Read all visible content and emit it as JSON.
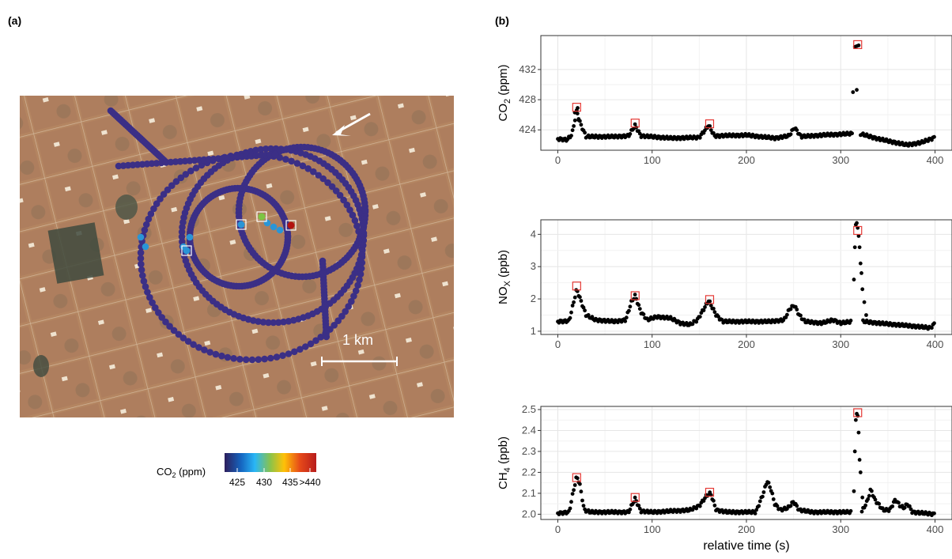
{
  "panel_labels": {
    "a": "(a)",
    "b": "(b)"
  },
  "map": {
    "scale_bar_label": "1 km",
    "colorbar": {
      "label_main": "CO",
      "label_sub": "2",
      "label_unit": " (ppm)",
      "tick_labels": [
        "425",
        "430",
        "435",
        ">440"
      ],
      "colors": [
        "#2d1e5c",
        "#1565c0",
        "#29b6f6",
        "#8bc34a",
        "#ffc107",
        "#e64a19",
        "#b71c1c"
      ]
    },
    "track_color": "#3b2f86",
    "highlight_colors": [
      "#2a95d6",
      "#2a95d6",
      "#7cc543",
      "#b3120f"
    ]
  },
  "chart_data": [
    {
      "type": "scatter",
      "ylabel_main": "CO",
      "ylabel_sub": "2",
      "ylabel_unit": " (ppm)",
      "xlim": [
        -18,
        418
      ],
      "ylim": [
        421.3,
        436.5
      ],
      "xticks": [
        0,
        100,
        200,
        300,
        400
      ],
      "yticks": [
        424,
        428,
        432
      ],
      "grid": true,
      "baseline": [
        [
          0,
          422.8
        ],
        [
          10,
          422.7
        ],
        [
          15,
          423.4
        ],
        [
          20,
          426.5
        ],
        [
          24,
          424.8
        ],
        [
          30,
          423.1
        ],
        [
          60,
          423.1
        ],
        [
          75,
          423.2
        ],
        [
          82,
          424.6
        ],
        [
          88,
          423.2
        ],
        [
          120,
          422.9
        ],
        [
          150,
          423.0
        ],
        [
          160,
          424.6
        ],
        [
          166,
          423.2
        ],
        [
          200,
          423.3
        ],
        [
          230,
          422.9
        ],
        [
          245,
          423.2
        ],
        [
          251,
          424.3
        ],
        [
          258,
          423.1
        ],
        [
          280,
          423.3
        ],
        [
          312,
          423.5
        ],
        [
          313,
          423.6
        ],
        [
          320,
          423.5
        ],
        [
          340,
          422.8
        ],
        [
          370,
          422.0
        ],
        [
          385,
          422.3
        ],
        [
          400,
          423.0
        ]
      ],
      "gaps": [
        [
          313,
          320
        ]
      ],
      "extra_points": [
        [
          18,
          426.3
        ],
        [
          20,
          426.6
        ],
        [
          21,
          426.9
        ],
        [
          22,
          425.3
        ],
        [
          313,
          429.0
        ],
        [
          317,
          429.3
        ],
        [
          315,
          435.0
        ],
        [
          317,
          435.1
        ],
        [
          319,
          435.2
        ]
      ],
      "markers": [
        [
          20,
          427.0
        ],
        [
          82,
          424.9
        ],
        [
          161,
          424.8
        ],
        [
          318,
          435.3
        ]
      ]
    },
    {
      "type": "scatter",
      "ylabel_main": "NO",
      "ylabel_sub": "X",
      "ylabel_unit": " (ppb)",
      "xlim": [
        -18,
        418
      ],
      "ylim": [
        0.9,
        4.45
      ],
      "xticks": [
        0,
        100,
        200,
        300,
        400
      ],
      "yticks": [
        1,
        2,
        3,
        4
      ],
      "grid": true,
      "baseline": [
        [
          0,
          1.3
        ],
        [
          12,
          1.32
        ],
        [
          16,
          1.8
        ],
        [
          20,
          2.3
        ],
        [
          25,
          1.9
        ],
        [
          30,
          1.5
        ],
        [
          40,
          1.35
        ],
        [
          60,
          1.3
        ],
        [
          72,
          1.35
        ],
        [
          78,
          1.9
        ],
        [
          82,
          2.1
        ],
        [
          88,
          1.6
        ],
        [
          95,
          1.35
        ],
        [
          105,
          1.45
        ],
        [
          120,
          1.4
        ],
        [
          130,
          1.25
        ],
        [
          140,
          1.2
        ],
        [
          148,
          1.35
        ],
        [
          155,
          1.7
        ],
        [
          160,
          1.95
        ],
        [
          168,
          1.5
        ],
        [
          175,
          1.3
        ],
        [
          200,
          1.3
        ],
        [
          225,
          1.3
        ],
        [
          240,
          1.35
        ],
        [
          246,
          1.7
        ],
        [
          251,
          1.8
        ],
        [
          256,
          1.5
        ],
        [
          262,
          1.3
        ],
        [
          280,
          1.25
        ],
        [
          292,
          1.35
        ],
        [
          300,
          1.25
        ],
        [
          312,
          1.3
        ],
        [
          325,
          1.3
        ],
        [
          340,
          1.25
        ],
        [
          360,
          1.2
        ],
        [
          380,
          1.15
        ],
        [
          395,
          1.1
        ],
        [
          400,
          1.25
        ]
      ],
      "gaps": [
        [
          312,
          323
        ]
      ],
      "extra_points": [
        [
          314,
          2.6
        ],
        [
          315,
          3.6
        ],
        [
          316,
          4.3
        ],
        [
          317,
          4.35
        ],
        [
          318,
          4.2
        ],
        [
          319,
          3.95
        ],
        [
          320,
          3.6
        ],
        [
          321,
          3.1
        ],
        [
          322,
          2.8
        ],
        [
          323,
          2.3
        ],
        [
          325,
          1.9
        ],
        [
          327,
          1.5
        ]
      ],
      "markers": [
        [
          20,
          2.4
        ],
        [
          82,
          2.1
        ],
        [
          161,
          1.98
        ],
        [
          318,
          4.12
        ]
      ]
    },
    {
      "type": "scatter",
      "ylabel_main": "CH",
      "ylabel_sub": "4",
      "ylabel_unit": " (ppb)",
      "xlim": [
        -18,
        418
      ],
      "ylim": [
        1.975,
        2.515
      ],
      "xticks": [
        0,
        100,
        200,
        300,
        400
      ],
      "yticks": [
        2.0,
        2.1,
        2.2,
        2.3,
        2.4,
        2.5
      ],
      "xlabel": "relative time (s)",
      "grid": true,
      "baseline": [
        [
          0,
          2.005
        ],
        [
          12,
          2.01
        ],
        [
          16,
          2.1
        ],
        [
          20,
          2.18
        ],
        [
          23,
          2.15
        ],
        [
          28,
          2.02
        ],
        [
          35,
          2.01
        ],
        [
          75,
          2.01
        ],
        [
          82,
          2.075
        ],
        [
          88,
          2.015
        ],
        [
          100,
          2.01
        ],
        [
          140,
          2.02
        ],
        [
          150,
          2.04
        ],
        [
          158,
          2.09
        ],
        [
          162,
          2.1
        ],
        [
          168,
          2.02
        ],
        [
          180,
          2.01
        ],
        [
          210,
          2.01
        ],
        [
          218,
          2.1
        ],
        [
          222,
          2.16
        ],
        [
          226,
          2.12
        ],
        [
          230,
          2.05
        ],
        [
          236,
          2.02
        ],
        [
          244,
          2.03
        ],
        [
          250,
          2.06
        ],
        [
          256,
          2.02
        ],
        [
          270,
          2.01
        ],
        [
          312,
          2.01
        ],
        [
          322,
          2.01
        ],
        [
          328,
          2.06
        ],
        [
          332,
          2.12
        ],
        [
          336,
          2.07
        ],
        [
          345,
          2.02
        ],
        [
          352,
          2.02
        ],
        [
          358,
          2.07
        ],
        [
          363,
          2.04
        ],
        [
          367,
          2.03
        ],
        [
          371,
          2.05
        ],
        [
          376,
          2.01
        ],
        [
          400,
          2.0
        ]
      ],
      "gaps": [
        [
          312,
          322
        ]
      ],
      "extra_points": [
        [
          314,
          2.11
        ],
        [
          315,
          2.3
        ],
        [
          316,
          2.45
        ],
        [
          317,
          2.48
        ],
        [
          318,
          2.47
        ],
        [
          319,
          2.39
        ],
        [
          320,
          2.26
        ],
        [
          321,
          2.2
        ],
        [
          323,
          2.08
        ]
      ],
      "markers": [
        [
          20,
          2.175
        ],
        [
          82,
          2.08
        ],
        [
          161,
          2.105
        ],
        [
          318,
          2.485
        ]
      ]
    }
  ]
}
